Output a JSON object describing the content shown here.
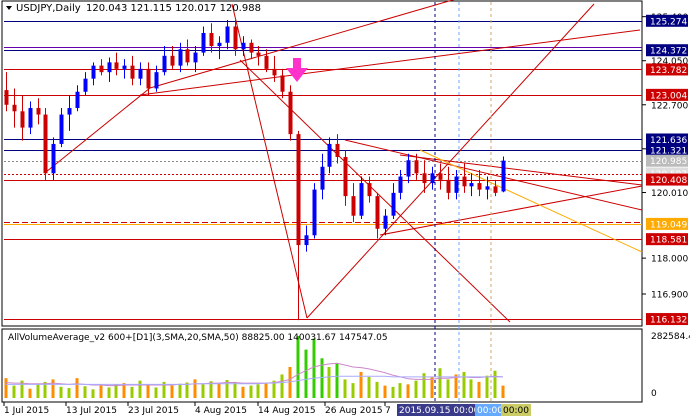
{
  "window": {
    "symbol_title": "USDJPY,Daily",
    "ohlc": "120.043 121.115 120.017 120.988"
  },
  "indicator": {
    "title": "AllVolumeAverage_v2 600+[D1](3,SMA,20,SMA,50) 88825.00 140031.67 147547.05",
    "axis": [
      "282584.4",
      "0"
    ]
  },
  "colors": {
    "background": "#ffffff",
    "bull": "#0000ff",
    "bear": "#cc0000",
    "level_red": "#cc0000",
    "level_blue": "#000080",
    "fib_orange": "#ffaa00",
    "arrow_magenta": "#ff33cc",
    "vol_green": "#33cc00",
    "vol_orange": "#ff8c00",
    "vol_lime": "#99cc00",
    "avg_pink": "#cc88cc",
    "avg_lavender": "#aaaaff",
    "tag_red": "#cc0000",
    "tag_blue": "#000080",
    "tag_cursor": "#3a3a8a"
  },
  "chart_data": {
    "type": "candlestick",
    "symbol": "USDJPY",
    "timeframe": "Daily",
    "y_ticks": [
      125.4,
      124.05,
      122.7,
      121.35,
      120.01,
      118.0,
      116.9
    ],
    "y_tick_labels": [
      "125.400",
      "124.050",
      "122.700",
      "121.350",
      "120.010",
      "118.000",
      "116.900"
    ],
    "ylim": [
      115.95,
      125.85
    ],
    "x_labels": [
      "1 Jul 2015",
      "13 Jul 2015",
      "23 Jul 2015",
      "4 Aug 2015",
      "14 Aug 2015",
      "26 Aug 2015",
      "7"
    ],
    "cursor_labels": [
      "2015.09.15 00:00",
      "00:00",
      "00:00"
    ],
    "levels": [
      {
        "price": 125.274,
        "label": "125.274",
        "color": "blue",
        "style": "solid"
      },
      {
        "price": 124.372,
        "label": "124.372",
        "color": "blue",
        "style": "solid"
      },
      {
        "price": 123.782,
        "label": "123.782",
        "color": "red",
        "style": "solid"
      },
      {
        "price": 123.004,
        "label": "123.004",
        "color": "red",
        "style": "solid"
      },
      {
        "price": 121.636,
        "label": "121.636",
        "color": "blue",
        "style": "solid"
      },
      {
        "price": 121.321,
        "label": "121.321",
        "color": "blue",
        "style": "solid"
      },
      {
        "price": 120.985,
        "label": "120.985",
        "color": "gray",
        "style": "dotted"
      },
      {
        "price": 120.593,
        "label": "120.593",
        "color": "red",
        "style": "dotted"
      },
      {
        "price": 120.408,
        "label": "120.408",
        "color": "red",
        "style": "solid"
      },
      {
        "price": 119.049,
        "label": "119.049",
        "color": "orange",
        "style": "solid"
      },
      {
        "price": 118.581,
        "label": "118.581",
        "color": "red",
        "style": "solid"
      },
      {
        "price": 116.132,
        "label": "116.132",
        "color": "red",
        "style": "solid"
      }
    ],
    "candles": [
      {
        "o": 123.15,
        "h": 123.7,
        "l": 122.5,
        "c": 122.7
      },
      {
        "o": 122.7,
        "h": 123.2,
        "l": 122.0,
        "c": 122.5
      },
      {
        "o": 122.5,
        "h": 123.0,
        "l": 121.6,
        "c": 122.0
      },
      {
        "o": 122.0,
        "h": 122.8,
        "l": 121.8,
        "c": 122.6
      },
      {
        "o": 122.6,
        "h": 122.9,
        "l": 122.1,
        "c": 122.4
      },
      {
        "o": 122.4,
        "h": 122.6,
        "l": 120.4,
        "c": 120.6
      },
      {
        "o": 120.6,
        "h": 121.7,
        "l": 120.4,
        "c": 121.5
      },
      {
        "o": 121.5,
        "h": 122.6,
        "l": 121.4,
        "c": 122.4
      },
      {
        "o": 122.4,
        "h": 123.0,
        "l": 121.9,
        "c": 122.6
      },
      {
        "o": 122.6,
        "h": 123.3,
        "l": 122.5,
        "c": 123.1
      },
      {
        "o": 123.1,
        "h": 123.7,
        "l": 123.0,
        "c": 123.5
      },
      {
        "o": 123.5,
        "h": 124.0,
        "l": 123.3,
        "c": 123.9
      },
      {
        "o": 123.9,
        "h": 124.1,
        "l": 123.6,
        "c": 123.7
      },
      {
        "o": 123.7,
        "h": 124.15,
        "l": 123.4,
        "c": 124.0
      },
      {
        "o": 124.0,
        "h": 124.3,
        "l": 123.6,
        "c": 123.8
      },
      {
        "o": 123.8,
        "h": 124.1,
        "l": 123.5,
        "c": 123.9
      },
      {
        "o": 123.9,
        "h": 124.2,
        "l": 123.3,
        "c": 123.5
      },
      {
        "o": 123.5,
        "h": 124.0,
        "l": 123.3,
        "c": 123.8
      },
      {
        "o": 123.8,
        "h": 124.0,
        "l": 123.0,
        "c": 123.2
      },
      {
        "o": 123.2,
        "h": 123.9,
        "l": 123.1,
        "c": 123.7
      },
      {
        "o": 123.7,
        "h": 124.5,
        "l": 123.6,
        "c": 124.2
      },
      {
        "o": 124.2,
        "h": 124.5,
        "l": 123.8,
        "c": 123.9
      },
      {
        "o": 123.9,
        "h": 124.6,
        "l": 123.7,
        "c": 124.4
      },
      {
        "o": 124.4,
        "h": 124.7,
        "l": 123.9,
        "c": 124.0
      },
      {
        "o": 124.0,
        "h": 124.5,
        "l": 123.7,
        "c": 124.3
      },
      {
        "o": 124.3,
        "h": 125.1,
        "l": 124.2,
        "c": 124.9
      },
      {
        "o": 124.9,
        "h": 125.2,
        "l": 124.3,
        "c": 124.5
      },
      {
        "o": 124.5,
        "h": 124.8,
        "l": 124.1,
        "c": 124.6
      },
      {
        "o": 124.6,
        "h": 125.3,
        "l": 124.4,
        "c": 125.1
      },
      {
        "o": 125.1,
        "h": 125.3,
        "l": 124.2,
        "c": 124.4
      },
      {
        "o": 124.4,
        "h": 124.8,
        "l": 124.2,
        "c": 124.6
      },
      {
        "o": 124.6,
        "h": 124.7,
        "l": 124.1,
        "c": 124.3
      },
      {
        "o": 124.3,
        "h": 124.5,
        "l": 123.9,
        "c": 124.2
      },
      {
        "o": 124.2,
        "h": 124.4,
        "l": 123.7,
        "c": 123.8
      },
      {
        "o": 123.8,
        "h": 124.2,
        "l": 123.4,
        "c": 123.6
      },
      {
        "o": 123.6,
        "h": 123.8,
        "l": 122.9,
        "c": 123.1
      },
      {
        "o": 123.1,
        "h": 123.3,
        "l": 121.6,
        "c": 121.8
      },
      {
        "o": 121.8,
        "h": 121.9,
        "l": 116.1,
        "c": 118.4
      },
      {
        "o": 118.4,
        "h": 119.0,
        "l": 118.2,
        "c": 118.7
      },
      {
        "o": 118.7,
        "h": 120.3,
        "l": 118.6,
        "c": 120.1
      },
      {
        "o": 120.1,
        "h": 121.2,
        "l": 119.8,
        "c": 120.8
      },
      {
        "o": 120.8,
        "h": 121.7,
        "l": 120.6,
        "c": 121.5
      },
      {
        "o": 121.5,
        "h": 121.8,
        "l": 120.9,
        "c": 121.1
      },
      {
        "o": 121.1,
        "h": 121.3,
        "l": 119.6,
        "c": 119.9
      },
      {
        "o": 119.9,
        "h": 120.3,
        "l": 119.1,
        "c": 119.3
      },
      {
        "o": 119.3,
        "h": 120.5,
        "l": 119.2,
        "c": 120.3
      },
      {
        "o": 120.3,
        "h": 120.5,
        "l": 119.7,
        "c": 119.9
      },
      {
        "o": 119.9,
        "h": 120.0,
        "l": 118.6,
        "c": 118.9
      },
      {
        "o": 118.9,
        "h": 119.5,
        "l": 118.7,
        "c": 119.3
      },
      {
        "o": 119.3,
        "h": 120.3,
        "l": 119.2,
        "c": 120.0
      },
      {
        "o": 120.0,
        "h": 120.7,
        "l": 119.8,
        "c": 120.5
      },
      {
        "o": 120.5,
        "h": 121.2,
        "l": 120.3,
        "c": 121.0
      },
      {
        "o": 121.0,
        "h": 121.2,
        "l": 120.4,
        "c": 120.6
      },
      {
        "o": 120.6,
        "h": 121.0,
        "l": 120.0,
        "c": 120.3
      },
      {
        "o": 120.3,
        "h": 120.8,
        "l": 120.1,
        "c": 120.6
      },
      {
        "o": 120.6,
        "h": 120.9,
        "l": 120.1,
        "c": 120.4
      },
      {
        "o": 120.4,
        "h": 120.8,
        "l": 119.8,
        "c": 120.0
      },
      {
        "o": 120.0,
        "h": 120.7,
        "l": 119.8,
        "c": 120.5
      },
      {
        "o": 120.5,
        "h": 120.9,
        "l": 120.0,
        "c": 120.2
      },
      {
        "o": 120.2,
        "h": 120.6,
        "l": 119.9,
        "c": 120.3
      },
      {
        "o": 120.3,
        "h": 120.7,
        "l": 119.9,
        "c": 120.1
      },
      {
        "o": 120.1,
        "h": 120.5,
        "l": 119.8,
        "c": 120.2
      },
      {
        "o": 120.2,
        "h": 120.4,
        "l": 119.9,
        "c": 120.0
      },
      {
        "o": 120.043,
        "h": 121.115,
        "l": 120.017,
        "c": 120.988
      }
    ],
    "volume": [
      0.32,
      0.2,
      0.28,
      0.15,
      0.22,
      0.26,
      0.3,
      0.18,
      0.16,
      0.32,
      0.19,
      0.14,
      0.2,
      0.17,
      0.22,
      0.24,
      0.18,
      0.28,
      0.21,
      0.17,
      0.26,
      0.2,
      0.23,
      0.25,
      0.3,
      0.22,
      0.27,
      0.24,
      0.29,
      0.26,
      0.18,
      0.2,
      0.22,
      0.24,
      0.28,
      0.38,
      0.5,
      1.0,
      0.78,
      0.96,
      0.64,
      0.5,
      0.56,
      0.3,
      0.24,
      0.42,
      0.34,
      0.26,
      0.2,
      0.18,
      0.24,
      0.22,
      0.28,
      0.4,
      0.34,
      0.48,
      0.3,
      0.38,
      0.42,
      0.3,
      0.26,
      0.36,
      0.44,
      0.2
    ],
    "vol_avg_fast": [
      0.25,
      0.24,
      0.24,
      0.23,
      0.23,
      0.23,
      0.24,
      0.23,
      0.22,
      0.23,
      0.22,
      0.21,
      0.21,
      0.2,
      0.2,
      0.21,
      0.21,
      0.21,
      0.21,
      0.21,
      0.21,
      0.21,
      0.22,
      0.22,
      0.23,
      0.23,
      0.24,
      0.24,
      0.25,
      0.25,
      0.24,
      0.24,
      0.24,
      0.24,
      0.25,
      0.27,
      0.3,
      0.38,
      0.44,
      0.5,
      0.53,
      0.55,
      0.56,
      0.53,
      0.5,
      0.49,
      0.47,
      0.44,
      0.41,
      0.37,
      0.34,
      0.31,
      0.3,
      0.3,
      0.3,
      0.32,
      0.32,
      0.33,
      0.34,
      0.33,
      0.33,
      0.34,
      0.35,
      0.34
    ],
    "vol_avg_slow": [
      0.22,
      0.22,
      0.22,
      0.22,
      0.22,
      0.22,
      0.22,
      0.22,
      0.22,
      0.22,
      0.22,
      0.22,
      0.22,
      0.22,
      0.22,
      0.22,
      0.22,
      0.22,
      0.22,
      0.22,
      0.22,
      0.22,
      0.22,
      0.22,
      0.23,
      0.23,
      0.23,
      0.23,
      0.23,
      0.23,
      0.23,
      0.23,
      0.23,
      0.24,
      0.24,
      0.25,
      0.26,
      0.28,
      0.3,
      0.32,
      0.33,
      0.34,
      0.35,
      0.35,
      0.35,
      0.35,
      0.35,
      0.35,
      0.35,
      0.34,
      0.34,
      0.34,
      0.34,
      0.34,
      0.34,
      0.34,
      0.34,
      0.34,
      0.34,
      0.34,
      0.34,
      0.34,
      0.34,
      0.34
    ]
  }
}
